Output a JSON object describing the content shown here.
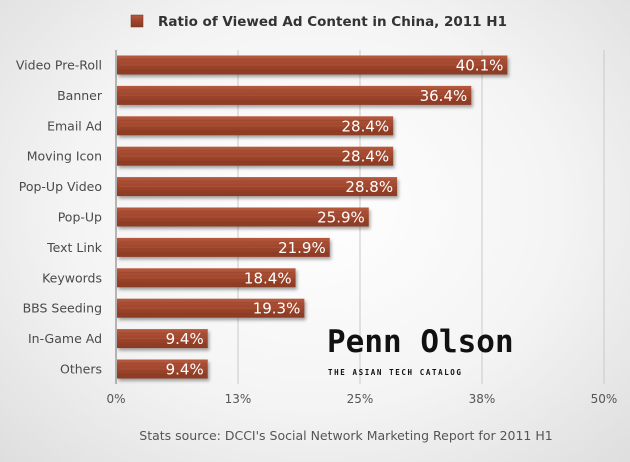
{
  "chart_data": {
    "type": "bar",
    "orientation": "horizontal",
    "title": "Ratio of Viewed Ad Content in China, 2011 H1",
    "categories": [
      "Video Pre-Roll",
      "Banner",
      "Email Ad",
      "Moving Icon",
      "Pop-Up Video",
      "Pop-Up",
      "Text Link",
      "Keywords",
      "BBS Seeding",
      "In-Game Ad",
      "Others"
    ],
    "values": [
      40.1,
      36.4,
      28.4,
      28.4,
      28.8,
      25.9,
      21.9,
      18.4,
      19.3,
      9.4,
      9.4
    ],
    "value_labels": [
      "40.1%",
      "36.4%",
      "28.4%",
      "28.4%",
      "28.8%",
      "25.9%",
      "21.9%",
      "18.4%",
      "19.3%",
      "9.4%",
      "9.4%"
    ],
    "xlim": [
      0,
      50
    ],
    "x_ticks": [
      0,
      12.5,
      25,
      37.5,
      50
    ],
    "x_tick_labels": [
      "0%",
      "13%",
      "25%",
      "38%",
      "50%"
    ],
    "grid": true,
    "legend": "top-center",
    "bar_color": "#a24a30",
    "source": "Stats source: DCCI's Social Network Marketing Report for 2011 H1"
  },
  "logo": {
    "name": "Penn Olson",
    "tagline": "THE ASIAN TECH CATALOG"
  }
}
